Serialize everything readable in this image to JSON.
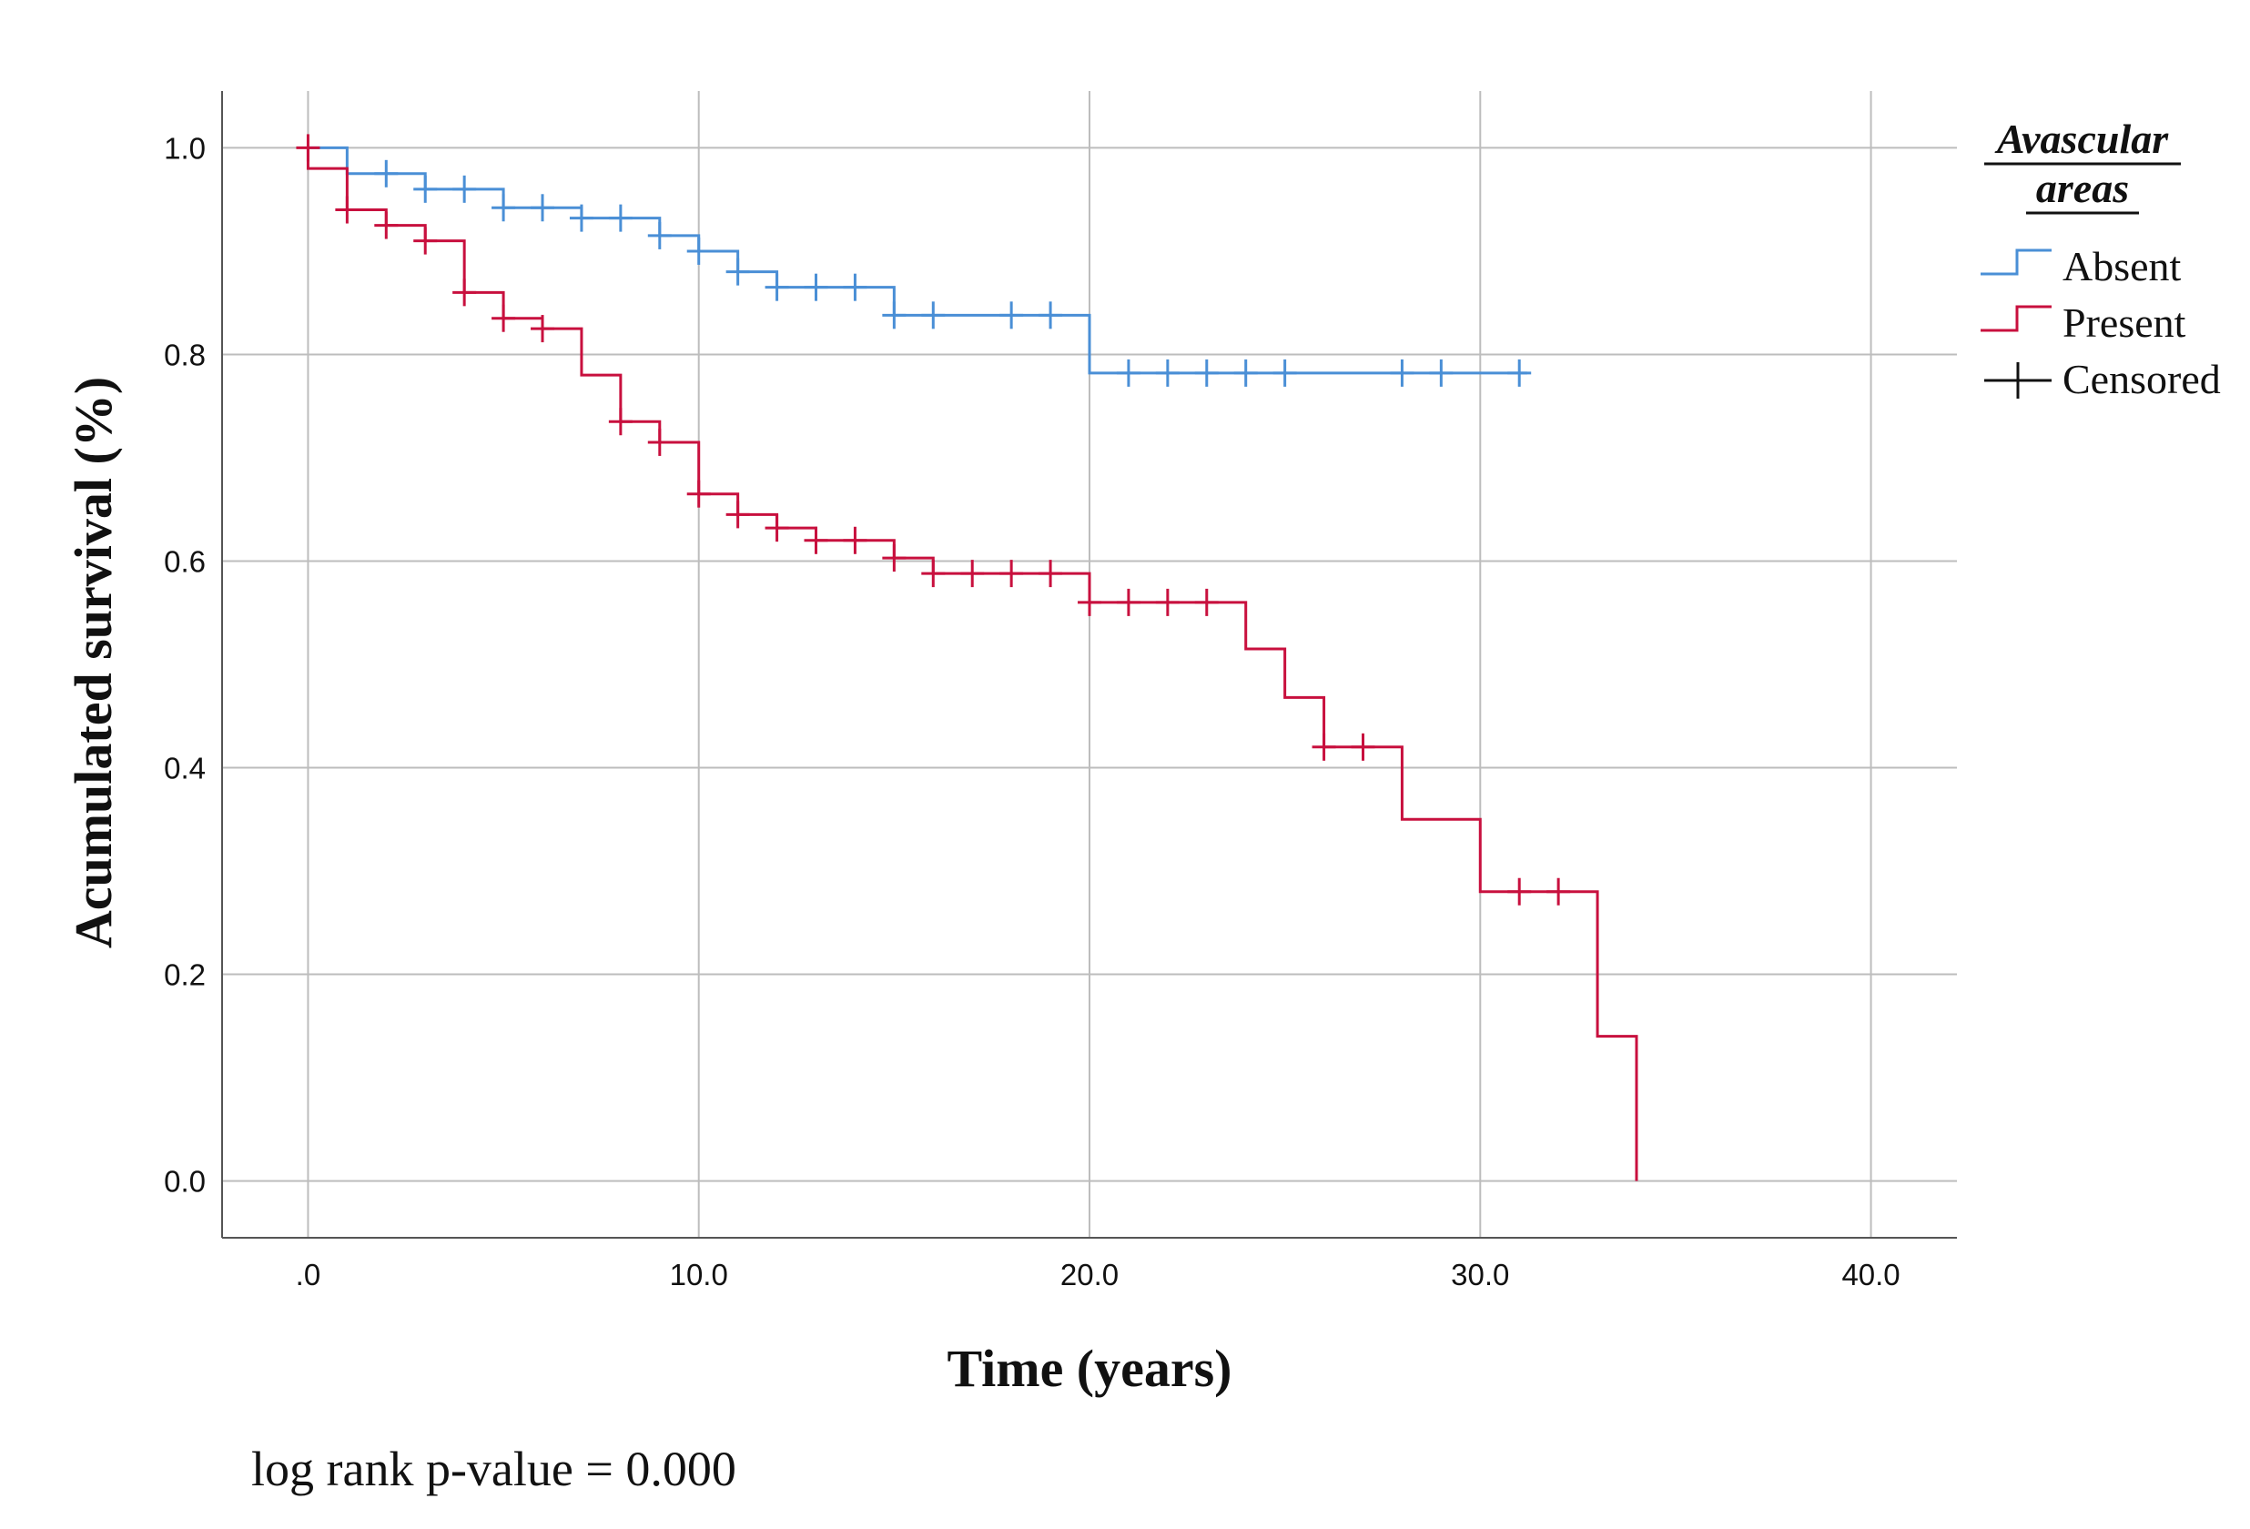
{
  "chart_data": {
    "type": "line",
    "subtype": "kaplan-meier step",
    "xlabel": "Time (years)",
    "ylabel": "Acumulated survival (%)",
    "xlim": [
      -2.2,
      42.2
    ],
    "ylim": [
      -0.055,
      1.055
    ],
    "x_ticks": [
      0,
      10,
      20,
      30,
      40
    ],
    "x_tick_labels": [
      ".0",
      "10.0",
      "20.0",
      "30.0",
      "40.0"
    ],
    "y_ticks": [
      0,
      0.2,
      0.4,
      0.6,
      0.8,
      1.0
    ],
    "y_tick_labels": [
      "0.0",
      "0.2",
      "0.4",
      "0.6",
      "0.8",
      "1.0"
    ],
    "grid": true,
    "legend": {
      "title_line1": "Avascular",
      "title_line2": "areas",
      "placement": "right",
      "censored_label": "Censored"
    },
    "series": [
      {
        "name": "Absent",
        "color": "#4a8fd6",
        "steps": [
          [
            0,
            1.0
          ],
          [
            1,
            0.975
          ],
          [
            3,
            0.96
          ],
          [
            5,
            0.942
          ],
          [
            7,
            0.932
          ],
          [
            9,
            0.915
          ],
          [
            10,
            0.9
          ],
          [
            11,
            0.88
          ],
          [
            12,
            0.865
          ],
          [
            15,
            0.838
          ],
          [
            20,
            0.782
          ],
          [
            31.2,
            0.782
          ]
        ],
        "censored": [
          [
            2,
            0.975
          ],
          [
            3,
            0.96
          ],
          [
            4,
            0.96
          ],
          [
            5,
            0.942
          ],
          [
            6,
            0.942
          ],
          [
            7,
            0.932
          ],
          [
            8,
            0.932
          ],
          [
            9,
            0.915
          ],
          [
            10,
            0.9
          ],
          [
            11,
            0.88
          ],
          [
            12,
            0.865
          ],
          [
            13,
            0.865
          ],
          [
            14,
            0.865
          ],
          [
            15,
            0.838
          ],
          [
            16,
            0.838
          ],
          [
            18,
            0.838
          ],
          [
            19,
            0.838
          ],
          [
            21,
            0.782
          ],
          [
            22,
            0.782
          ],
          [
            23,
            0.782
          ],
          [
            24,
            0.782
          ],
          [
            25,
            0.782
          ],
          [
            28,
            0.782
          ],
          [
            29,
            0.782
          ],
          [
            31,
            0.782
          ]
        ]
      },
      {
        "name": "Present",
        "color": "#c8103e",
        "steps": [
          [
            0,
            1.0
          ],
          [
            0,
            0.98
          ],
          [
            1,
            0.94
          ],
          [
            2,
            0.925
          ],
          [
            3,
            0.91
          ],
          [
            4,
            0.86
          ],
          [
            5,
            0.835
          ],
          [
            6,
            0.825
          ],
          [
            7,
            0.78
          ],
          [
            8,
            0.735
          ],
          [
            9,
            0.715
          ],
          [
            10,
            0.665
          ],
          [
            11,
            0.645
          ],
          [
            12,
            0.632
          ],
          [
            13,
            0.62
          ],
          [
            15,
            0.603
          ],
          [
            16,
            0.588
          ],
          [
            20,
            0.56
          ],
          [
            24,
            0.515
          ],
          [
            25,
            0.468
          ],
          [
            26,
            0.42
          ],
          [
            28,
            0.35
          ],
          [
            30,
            0.28
          ],
          [
            33,
            0.14
          ],
          [
            34,
            0.0
          ]
        ],
        "censored": [
          [
            0,
            1.0
          ],
          [
            1,
            0.94
          ],
          [
            2,
            0.925
          ],
          [
            3,
            0.91
          ],
          [
            4,
            0.86
          ],
          [
            5,
            0.835
          ],
          [
            6,
            0.825
          ],
          [
            8,
            0.735
          ],
          [
            9,
            0.715
          ],
          [
            10,
            0.665
          ],
          [
            11,
            0.645
          ],
          [
            12,
            0.632
          ],
          [
            13,
            0.62
          ],
          [
            14,
            0.62
          ],
          [
            15,
            0.603
          ],
          [
            16,
            0.588
          ],
          [
            17,
            0.588
          ],
          [
            18,
            0.588
          ],
          [
            19,
            0.588
          ],
          [
            20,
            0.56
          ],
          [
            21,
            0.56
          ],
          [
            22,
            0.56
          ],
          [
            23,
            0.56
          ],
          [
            26,
            0.42
          ],
          [
            27,
            0.42
          ],
          [
            31,
            0.28
          ],
          [
            32,
            0.28
          ]
        ]
      }
    ],
    "annotation": "log rank p-value = 0.000"
  }
}
